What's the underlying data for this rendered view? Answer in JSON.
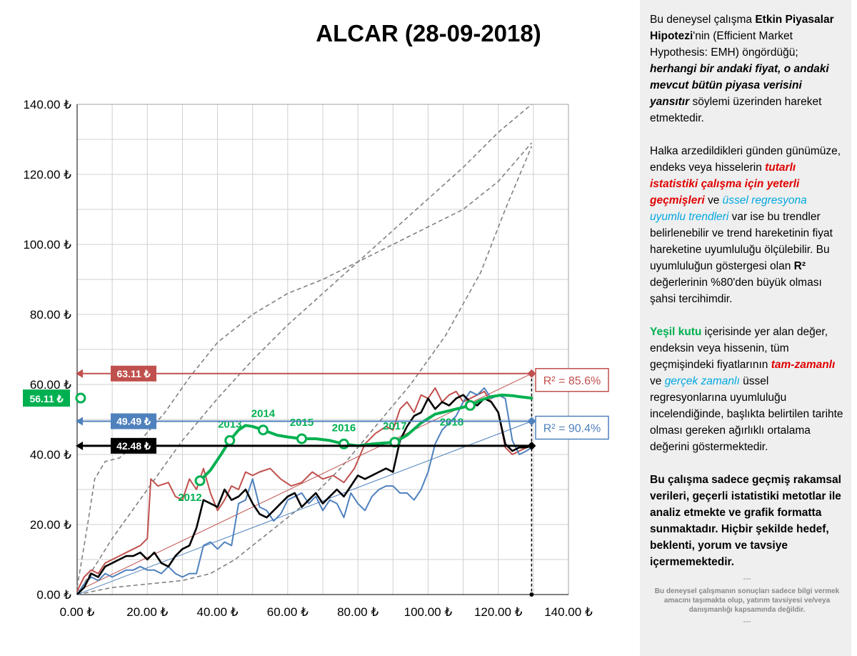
{
  "chart_data": {
    "type": "line",
    "title": "ALCAR (28-09-2018)",
    "xlim": [
      0,
      140
    ],
    "ylim": [
      0,
      140
    ],
    "x_ticks": [
      "0.00 ₺",
      "20.00 ₺",
      "40.00 ₺",
      "60.00 ₺",
      "80.00 ₺",
      "100.00 ₺",
      "120.00 ₺",
      "140.00 ₺"
    ],
    "y_ticks": [
      "0.00 ₺",
      "20.00 ₺",
      "40.00 ₺",
      "60.00 ₺",
      "80.00 ₺",
      "100.00 ₺",
      "120.00 ₺",
      "140.00 ₺"
    ],
    "grid": true,
    "colors": {
      "red": "#c0504d",
      "blue": "#4f81bd",
      "black": "#000000",
      "green": "#00b050",
      "gray": "#808080"
    },
    "price_labels": [
      {
        "value": 63.11,
        "text": "63.11 ₺",
        "color": "#c0504d"
      },
      {
        "value": 56.11,
        "text": "56.11 ₺",
        "color": "#00b050"
      },
      {
        "value": 49.49,
        "text": "49.49 ₺",
        "color": "#4f81bd"
      },
      {
        "value": 42.48,
        "text": "42.48 ₺",
        "color": "#000000"
      }
    ],
    "r2_labels": [
      {
        "text": "R² = 85.6%",
        "color": "#c0504d",
        "y": 63.11
      },
      {
        "text": "R² = 90.4%",
        "color": "#4f81bd",
        "y": 49.49
      }
    ],
    "trend_lines": [
      {
        "name": "red-trend",
        "color": "#c0504d",
        "x": [
          0,
          129.5
        ],
        "y": [
          1,
          63.11
        ]
      },
      {
        "name": "blue-trend",
        "color": "#4f81bd",
        "x": [
          0,
          129.5
        ],
        "y": [
          0,
          49.49
        ]
      }
    ],
    "year_labels": [
      {
        "year": "2012",
        "x": 35,
        "y": 32.5
      },
      {
        "year": "2013",
        "x": 43.5,
        "y": 44
      },
      {
        "year": "2014",
        "x": 53,
        "y": 47
      },
      {
        "year": "2015",
        "x": 64,
        "y": 44.5
      },
      {
        "year": "2016",
        "x": 76,
        "y": 43
      },
      {
        "year": "2017",
        "x": 90.5,
        "y": 43.5
      },
      {
        "year": "2018",
        "x": 112,
        "y": 54
      }
    ],
    "green_series": {
      "name": "green",
      "x": [
        35,
        38,
        41,
        43.5,
        46,
        48,
        50,
        53,
        57,
        60,
        64,
        68,
        72,
        76,
        80,
        84,
        88,
        90.5,
        94,
        98,
        102,
        106,
        110,
        112,
        115,
        118,
        121,
        124,
        126,
        129.5
      ],
      "y": [
        32.5,
        35.5,
        40,
        44,
        47,
        48.3,
        48,
        47,
        45.5,
        45,
        44.5,
        44.5,
        44,
        43,
        42.5,
        43,
        43.3,
        43.5,
        45.5,
        49,
        51.5,
        52.5,
        53.5,
        54,
        55.5,
        56.5,
        57,
        56.8,
        56.5,
        56.1
      ],
      "markers": [
        {
          "x": 1,
          "y": 56.11
        },
        {
          "x": 35,
          "y": 32.5
        },
        {
          "x": 43.5,
          "y": 44
        },
        {
          "x": 53,
          "y": 47
        },
        {
          "x": 64,
          "y": 44.5
        },
        {
          "x": 76,
          "y": 43
        },
        {
          "x": 90.5,
          "y": 43.5
        },
        {
          "x": 112,
          "y": 54
        }
      ]
    },
    "series": [
      {
        "name": "red",
        "x": [
          0,
          2,
          4,
          6,
          8,
          10,
          12,
          14,
          16,
          18,
          20,
          21,
          23,
          26,
          28,
          30,
          32,
          34,
          36,
          38,
          40,
          42,
          44,
          46,
          48,
          50,
          52,
          55,
          58,
          61,
          64,
          67,
          70,
          73,
          76,
          79,
          82,
          85,
          88,
          90,
          92,
          94,
          96,
          98,
          100,
          102,
          104,
          106,
          108,
          110,
          112,
          114,
          116,
          118,
          120,
          122,
          124,
          126,
          128,
          129.5
        ],
        "y": [
          1,
          5,
          7,
          6,
          9,
          10,
          11,
          12,
          13,
          14,
          16,
          33,
          31,
          32,
          28,
          27,
          33,
          30,
          36,
          29,
          24,
          27,
          31,
          30,
          35,
          34,
          35,
          36,
          33,
          31,
          32,
          35,
          33,
          34,
          32,
          36,
          43,
          46,
          48,
          47,
          53,
          55,
          52,
          57,
          56,
          59,
          55,
          57,
          58,
          55,
          56,
          57,
          58,
          55,
          52,
          42,
          40,
          41,
          42,
          42.48
        ]
      },
      {
        "name": "blue",
        "x": [
          0,
          2,
          4,
          6,
          8,
          10,
          12,
          14,
          16,
          18,
          20,
          22,
          24,
          26,
          28,
          30,
          32,
          34,
          36,
          38,
          40,
          42,
          44,
          46,
          48,
          50,
          52,
          54,
          56,
          58,
          60,
          62,
          64,
          66,
          68,
          70,
          72,
          74,
          76,
          78,
          80,
          82,
          84,
          86,
          88,
          90,
          92,
          94,
          96,
          98,
          100,
          102,
          104,
          106,
          108,
          110,
          112,
          114,
          116,
          118,
          120,
          122,
          124,
          126,
          128,
          129.5
        ],
        "y": [
          0,
          3,
          5,
          4,
          6,
          5,
          6,
          7,
          7,
          8,
          7,
          7,
          6,
          8,
          6,
          5,
          6,
          6,
          14,
          15,
          13,
          15,
          14,
          26,
          27,
          33,
          25,
          24,
          21,
          23,
          27,
          28,
          29,
          26,
          28,
          24,
          27,
          26,
          22,
          29,
          26,
          24,
          28,
          30,
          31,
          31,
          29,
          29,
          27,
          30,
          35,
          43,
          47,
          49,
          51,
          55,
          58,
          57,
          59,
          56,
          57,
          56,
          44,
          40,
          41,
          42
        ]
      },
      {
        "name": "black",
        "x": [
          0,
          2,
          4,
          6,
          8,
          10,
          12,
          14,
          16,
          18,
          20,
          22,
          24,
          26,
          28,
          30,
          32,
          34,
          36,
          38,
          40,
          42,
          44,
          46,
          48,
          50,
          52,
          54,
          56,
          58,
          60,
          62,
          64,
          66,
          68,
          70,
          72,
          74,
          76,
          78,
          80,
          82,
          84,
          86,
          88,
          90,
          92,
          94,
          96,
          98,
          100,
          102,
          104,
          106,
          108,
          110,
          112,
          114,
          116,
          118,
          120,
          122,
          124,
          126,
          128,
          129.5
        ],
        "y": [
          0,
          2,
          6,
          5,
          8,
          9,
          10,
          11,
          11,
          12,
          10,
          12,
          9,
          8,
          11,
          13,
          14,
          19,
          27,
          26,
          25,
          30,
          27,
          28,
          30,
          26,
          23,
          22,
          24,
          26,
          28,
          29,
          25,
          27,
          29,
          26,
          28,
          30,
          28,
          31,
          34,
          33,
          34,
          35,
          36,
          35,
          44,
          48,
          51,
          52,
          56,
          53,
          55,
          54,
          56,
          57,
          55,
          54,
          56,
          55,
          52,
          43,
          41,
          42,
          42,
          42.48
        ]
      }
    ],
    "envelope_curves": [
      {
        "name": "upper-envelope",
        "x": [
          0,
          3,
          5,
          8,
          12,
          18,
          25,
          32,
          40,
          50,
          60,
          70,
          80,
          90,
          100,
          110,
          120,
          129.5
        ],
        "y": [
          2,
          20,
          33,
          38,
          39,
          44,
          52,
          62,
          72,
          80,
          86,
          90,
          95,
          100,
          105,
          110,
          118,
          129
        ]
      },
      {
        "name": "middle-envelope",
        "x": [
          0,
          10,
          20,
          30,
          40,
          50,
          60,
          70,
          80,
          90,
          100,
          110,
          120,
          129.5
        ],
        "y": [
          0,
          16,
          30,
          44,
          56,
          67,
          77,
          86,
          95,
          104,
          113,
          122,
          132,
          140
        ]
      },
      {
        "name": "lower-envelope",
        "x": [
          0,
          10,
          20,
          30,
          38,
          45,
          55,
          65,
          75,
          85,
          95,
          105,
          115,
          122,
          129.5
        ],
        "y": [
          0,
          2,
          3,
          4,
          6,
          10,
          18,
          26,
          36,
          48,
          60,
          74,
          92,
          110,
          128
        ]
      }
    ]
  },
  "side_panel": {
    "p1": {
      "t1": "Bu deneysel çalışma ",
      "b1": "Etkin Piyasalar Hipotezi",
      "t2": "'nin (Efficient Market Hypothesis: EMH) öngördüğü; ",
      "bi1": "herhangi bir andaki fiyat, o andaki mevcut bütün piyasa verisini yansıtır",
      "t3": " söylemi üzerinden hareket etmektedir."
    },
    "p2": {
      "t1": "Halka arzedildikleri günden günümüze, endeks veya hisselerin ",
      "red1": "tutarlı istatistiki çalışma için yeterli geçmişleri",
      "t2": " ve ",
      "cyan1": "üssel regresyona uyumlu trendleri",
      "t3": " var ise bu trendler belirlenebilir ve trend hareketinin fiyat hareketine uyumluluğu ölçülebilir.  Bu uyumluluğun göstergesi olan ",
      "b1": "R²",
      "t4": " değerlerinin %80'den büyük olması şahsi tercihimdir."
    },
    "p3": {
      "green1": "Yeşil kutu",
      "t1": " içerisinde yer alan değer, endeksin veya hissenin, tüm geçmişindeki fiyatlarının ",
      "red1": "tam-zamanlı",
      "t2": " ve ",
      "cyan1": "gerçek zamanlı",
      "t3": " üssel regresyonlarına uyumluluğu incelendiğinde, başlıkta belirtilen tarihte olması gereken ağırlıklı ortalama değerini göstermektedir."
    },
    "p4": "Bu çalışma sadece geçmiş rakamsal verileri, geçerli istatistiki metotlar ile  analiz etmekte ve grafik formatta sunmaktadır. Hiçbir şekilde hedef, beklenti, yorum ve tavsiye içermemektedir.",
    "sep": "---",
    "note": "Bu deneysel çalışmanın sonuçları sadece bilgi vermek amacını taşımakta olup, yatırım tavsiyesi ve/veya danışmanlığı kapsamında değildir."
  }
}
